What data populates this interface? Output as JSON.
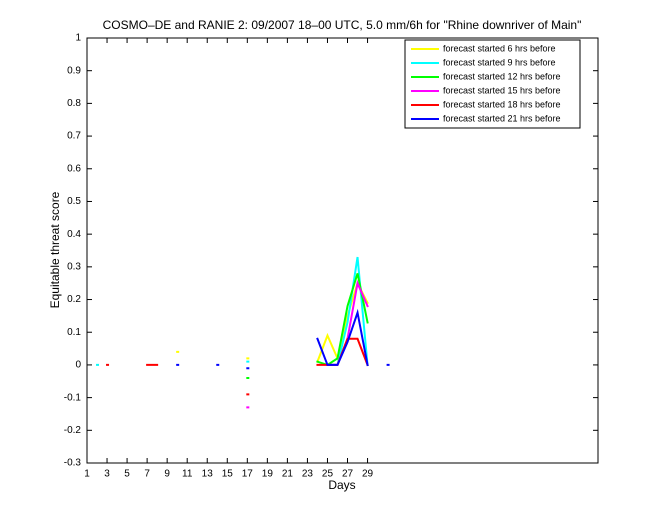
{
  "chart_data": {
    "type": "line",
    "title": "COSMO–DE and RANIE 2: 09/2007 18–00 UTC, 5.0 mm/6h for \"Rhine downriver of Main\"",
    "xlabel": "Days",
    "ylabel": "Equitable threat score",
    "x": [
      1,
      2,
      3,
      4,
      5,
      6,
      7,
      8,
      9,
      10,
      11,
      12,
      13,
      14,
      15,
      16,
      17,
      18,
      19,
      20,
      21,
      22,
      23,
      24,
      25,
      26,
      27,
      28,
      29,
      30,
      31
    ],
    "xlim": [
      1,
      52
    ],
    "ylim": [
      -0.3,
      1
    ],
    "xticks": [
      1,
      3,
      5,
      7,
      9,
      11,
      13,
      15,
      17,
      19,
      21,
      23,
      25,
      27,
      29
    ],
    "yticks": [
      -0.3,
      -0.2,
      -0.1,
      0,
      0.1,
      0.2,
      0.3,
      0.4,
      0.5,
      0.6,
      0.7,
      0.8,
      0.9,
      1
    ],
    "legend": "northeast",
    "series": [
      {
        "name": "forecast started 6 hrs before",
        "color": "#ffff00",
        "values": [
          null,
          null,
          null,
          null,
          null,
          null,
          null,
          null,
          null,
          0.04,
          null,
          null,
          null,
          null,
          null,
          null,
          0.02,
          null,
          null,
          null,
          null,
          null,
          null,
          0.01,
          0.09,
          0.02,
          0.15,
          0.25,
          0.19,
          null,
          null
        ]
      },
      {
        "name": "forecast started 9 hrs before",
        "color": "#00ffff",
        "values": [
          null,
          0,
          null,
          null,
          null,
          null,
          null,
          null,
          null,
          null,
          null,
          null,
          null,
          null,
          null,
          null,
          0.01,
          null,
          null,
          null,
          null,
          null,
          null,
          null,
          0,
          0,
          0.13,
          0.33,
          0,
          null,
          null
        ]
      },
      {
        "name": "forecast started 12 hrs before",
        "color": "#00ff00",
        "values": [
          null,
          null,
          null,
          null,
          null,
          null,
          null,
          null,
          null,
          null,
          null,
          null,
          null,
          null,
          null,
          null,
          -0.04,
          null,
          null,
          null,
          null,
          null,
          null,
          0.01,
          0,
          0.02,
          0.18,
          0.28,
          0.13,
          null,
          null
        ]
      },
      {
        "name": "forecast started 15 hrs before",
        "color": "#ff00ff",
        "values": [
          null,
          null,
          null,
          null,
          null,
          null,
          null,
          null,
          null,
          null,
          null,
          null,
          null,
          null,
          null,
          null,
          -0.13,
          null,
          null,
          null,
          null,
          null,
          null,
          null,
          0,
          0,
          0.08,
          0.25,
          0.18,
          null,
          null
        ]
      },
      {
        "name": "forecast started 18 hrs before",
        "color": "#ff0000",
        "values": [
          null,
          null,
          0,
          null,
          null,
          null,
          0,
          0,
          null,
          null,
          null,
          null,
          null,
          null,
          null,
          null,
          -0.09,
          null,
          null,
          null,
          null,
          null,
          null,
          0,
          0,
          0,
          0.08,
          0.08,
          0,
          null,
          null
        ]
      },
      {
        "name": "forecast started 21 hrs before",
        "color": "#0000ff",
        "values": [
          null,
          null,
          null,
          null,
          null,
          null,
          null,
          null,
          null,
          0,
          null,
          null,
          null,
          0,
          null,
          null,
          -0.01,
          null,
          null,
          null,
          null,
          null,
          null,
          0.08,
          0,
          0,
          0.07,
          0.16,
          0,
          null,
          0
        ]
      }
    ]
  }
}
